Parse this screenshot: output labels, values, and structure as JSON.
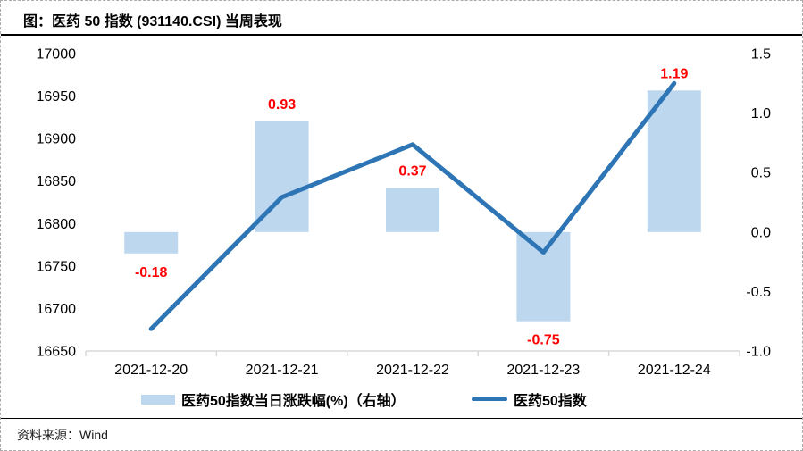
{
  "title": "图：医药 50 指数 (931140.CSI) 当周表现",
  "footer": {
    "source_label": "资料来源：",
    "source_value": "Wind"
  },
  "colors": {
    "bar": "#BDD7EE",
    "line": "#2E75B6",
    "data_label": "#FF0000",
    "axis_line": "#D9D9D9",
    "text": "#000000"
  },
  "chart_data": {
    "type": "combo",
    "title": "医药50指数 (931140.CSI) 当周表现",
    "categories": [
      "2021-12-20",
      "2021-12-21",
      "2021-12-22",
      "2021-12-23",
      "2021-12-24"
    ],
    "series": [
      {
        "name": "医药50指数当日涨跌幅(%)（右轴）",
        "type": "bar",
        "axis": "right",
        "values": [
          -0.18,
          0.93,
          0.37,
          -0.75,
          1.19
        ],
        "point_labels": [
          "-0.18",
          "0.93",
          "0.37",
          "-0.75",
          "1.19"
        ],
        "point_label_color": "#FF0000"
      },
      {
        "name": "医药50指数",
        "type": "line",
        "axis": "left",
        "values": [
          16676,
          16831,
          16893,
          16766,
          16965
        ]
      }
    ],
    "left_axis": {
      "min": 16650,
      "max": 17000,
      "step": 50,
      "tick_labels": [
        "16650",
        "16700",
        "16750",
        "16800",
        "16850",
        "16900",
        "16950",
        "17000"
      ]
    },
    "right_axis": {
      "min": -1.0,
      "max": 1.5,
      "step": 0.5,
      "tick_labels": [
        "-1.0",
        "-0.5",
        "0.0",
        "0.5",
        "1.0",
        "1.5"
      ]
    },
    "grid": false,
    "legend_position": "bottom"
  }
}
